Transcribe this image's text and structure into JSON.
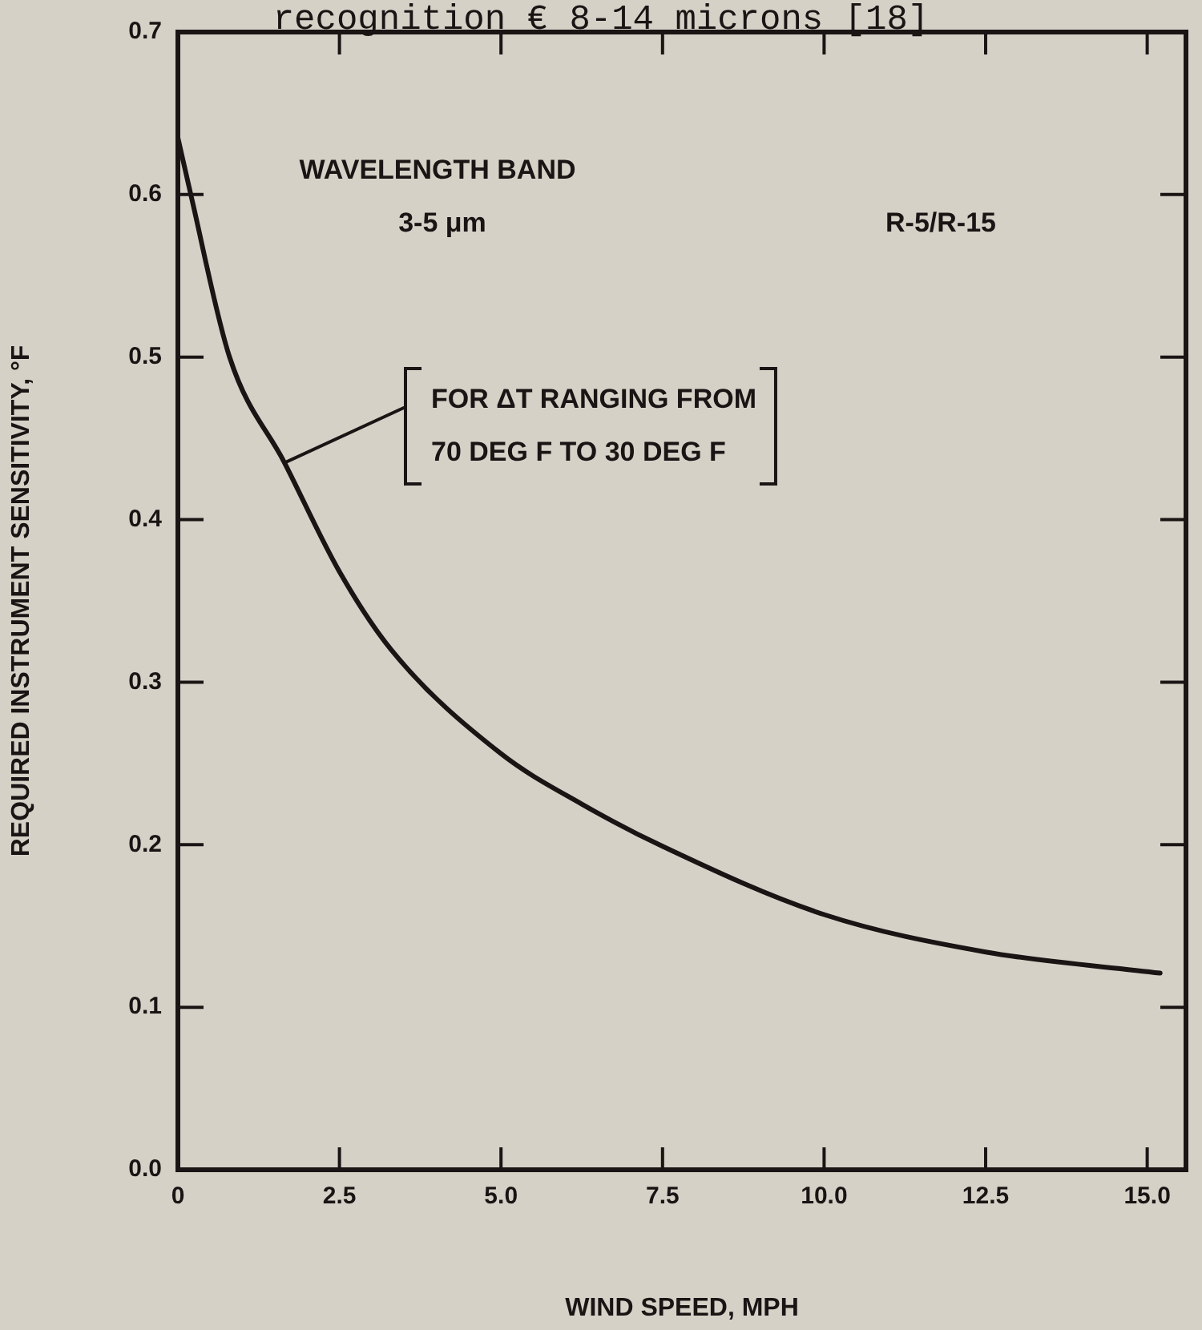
{
  "chart_data": {
    "type": "line",
    "title": "recognition € 8-14 microns [18]",
    "xlabel": "WIND SPEED, MPH",
    "ylabel": "REQUIRED INSTRUMENT SENSITIVITY, °F",
    "x": [
      0,
      0.2,
      0.8,
      1.65,
      2.5,
      3.3,
      5,
      6.25,
      7.5,
      10,
      12.5,
      15.2
    ],
    "series": [
      {
        "color": "#1a1414",
        "values": [
          0.635,
          0.6,
          0.5,
          0.435,
          0.368,
          0.32,
          0.256,
          0.225,
          0.199,
          0.157,
          0.134,
          0.121
        ]
      }
    ],
    "xlim": [
      0,
      15.6
    ],
    "ylim": [
      0,
      0.7
    ],
    "xticks": [
      0,
      2.5,
      {
        "value": 5,
        "label": "5.0"
      },
      7.5,
      {
        "value": 10,
        "label": "10.0"
      },
      12.5,
      {
        "value": 15,
        "label": "15.0"
      }
    ],
    "yticks": [
      {
        "value": 0,
        "label": "0.0"
      },
      0.1,
      0.2,
      0.3,
      0.4,
      0.5,
      0.6,
      0.7
    ],
    "annotations": [
      "WAVELENGTH BAND\n3-5 μm",
      "R-5/R-15",
      {
        "text": "FOR ΔT RANGING FROM\n70 DEG F TO 30 DEG F",
        "x": 1.65,
        "y": 0.435
      }
    ],
    "grid": false,
    "legend": false,
    "marker": "none",
    "line_style": "solid"
  }
}
